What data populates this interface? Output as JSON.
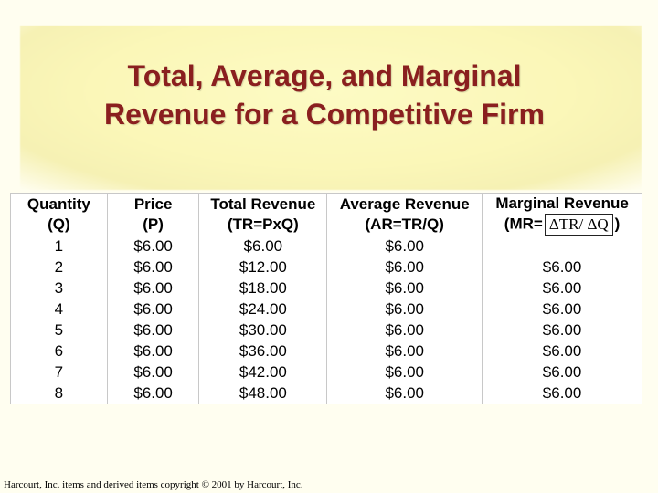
{
  "title_lines": [
    "Total, Average, and Marginal",
    "Revenue for a Competitive Firm"
  ],
  "headers": [
    [
      "Quantity",
      "(Q)"
    ],
    [
      "Price",
      "(P)"
    ],
    [
      "Total Revenue",
      "(TR=PxQ)"
    ],
    [
      "Average Revenue",
      "(AR=TR/Q)"
    ],
    [
      "Marginal Revenue",
      "(MR=",
      "ΔTR/ ΔQ",
      ")"
    ]
  ],
  "rows": [
    [
      "1",
      "$6.00",
      "$6.00",
      "$6.00",
      ""
    ],
    [
      "2",
      "$6.00",
      "$12.00",
      "$6.00",
      "$6.00"
    ],
    [
      "3",
      "$6.00",
      "$18.00",
      "$6.00",
      "$6.00"
    ],
    [
      "4",
      "$6.00",
      "$24.00",
      "$6.00",
      "$6.00"
    ],
    [
      "5",
      "$6.00",
      "$30.00",
      "$6.00",
      "$6.00"
    ],
    [
      "6",
      "$6.00",
      "$36.00",
      "$6.00",
      "$6.00"
    ],
    [
      "7",
      "$6.00",
      "$42.00",
      "$6.00",
      "$6.00"
    ],
    [
      "8",
      "$6.00",
      "$48.00",
      "$6.00",
      "$6.00"
    ]
  ],
  "footer": "Harcourt, Inc. items and derived items copyright © 2001 by Harcourt, Inc."
}
